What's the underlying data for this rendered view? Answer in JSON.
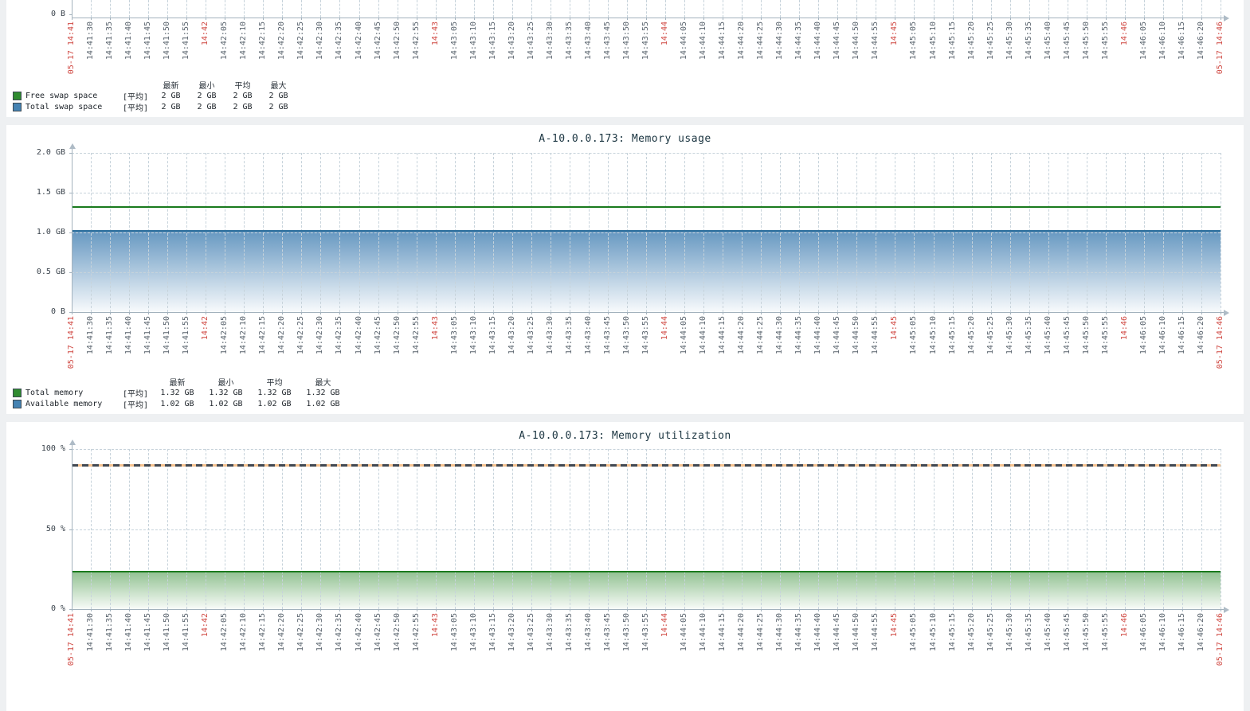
{
  "page": {
    "background": "#eef0f2",
    "panel_background": "#ffffff"
  },
  "palette": {
    "grid": "#c7d3db",
    "axis": "#a3b2bd",
    "tick_text": "#5a646e",
    "tick_text_red": "#d04a44",
    "ylabel_text": "#39424b",
    "title_text": "#1b3541",
    "legend_text": "#20262c",
    "green_line": "#1a7a1d",
    "green_swatch": "#2f8b30",
    "blue_line": "#2d6f9d",
    "blue_swatch": "#4583b3",
    "swatch_border": "#3e4a54",
    "threshold_dark": "#414851",
    "threshold_orange": "#f5c28f"
  },
  "time_axis": {
    "labels": [
      "05-17 14:41",
      "14:41:30",
      "14:41:35",
      "14:41:40",
      "14:41:45",
      "14:41:50",
      "14:41:55",
      "14:42",
      "14:42:05",
      "14:42:10",
      "14:42:15",
      "14:42:20",
      "14:42:25",
      "14:42:30",
      "14:42:35",
      "14:42:40",
      "14:42:45",
      "14:42:50",
      "14:42:55",
      "14:43",
      "14:43:05",
      "14:43:10",
      "14:43:15",
      "14:43:20",
      "14:43:25",
      "14:43:30",
      "14:43:35",
      "14:43:40",
      "14:43:45",
      "14:43:50",
      "14:43:55",
      "14:44",
      "14:44:05",
      "14:44:10",
      "14:44:15",
      "14:44:20",
      "14:44:25",
      "14:44:30",
      "14:44:35",
      "14:44:40",
      "14:44:45",
      "14:44:50",
      "14:44:55",
      "14:45",
      "14:45:05",
      "14:45:10",
      "14:45:15",
      "14:45:20",
      "14:45:25",
      "14:45:30",
      "14:45:35",
      "14:45:40",
      "14:45:45",
      "14:45:50",
      "14:45:55",
      "14:46",
      "14:46:05",
      "14:46:10",
      "14:46:15",
      "14:46:20",
      "05-17 14:46"
    ],
    "red_indices": [
      0,
      7,
      19,
      31,
      43,
      55,
      60
    ]
  },
  "legend_stat_headers": [
    "最新",
    "最小",
    "平均",
    "最大"
  ],
  "panels": [
    {
      "id": "swap-space",
      "title": "",
      "y_labels": [
        "0 B"
      ],
      "legend_rows": [
        {
          "swatch": "#2f8b30",
          "label": "Free swap space",
          "function": "[平均]",
          "values": [
            "2 GB",
            "2 GB",
            "2 GB",
            "2 GB"
          ]
        },
        {
          "swatch": "#4583b3",
          "label": "Total swap space",
          "function": "[平均]",
          "values": [
            "2 GB",
            "2 GB",
            "2 GB",
            "2 GB"
          ]
        }
      ]
    },
    {
      "id": "memory-usage",
      "title": "A-10.0.0.173: Memory usage",
      "y_labels": [
        "2.0 GB",
        "1.5 GB",
        "1.0 GB",
        "0.5 GB",
        "0 B"
      ],
      "legend_rows": [
        {
          "swatch": "#2f8b30",
          "label": "Total memory",
          "function": "[平均]",
          "values": [
            "1.32 GB",
            "1.32 GB",
            "1.32 GB",
            "1.32 GB"
          ]
        },
        {
          "swatch": "#4583b3",
          "label": "Available memory",
          "function": "[平均]",
          "values": [
            "1.02 GB",
            "1.02 GB",
            "1.02 GB",
            "1.02 GB"
          ]
        }
      ]
    },
    {
      "id": "memory-utilization",
      "title": "A-10.0.0.173: Memory utilization",
      "y_labels": [
        "100 %",
        "50 %",
        "0 %"
      ]
    }
  ],
  "chart_data": [
    {
      "type": "line",
      "title": "",
      "x_start": "05-17 14:41",
      "x_end": "05-17 14:46",
      "x_tick_interval_seconds": 5,
      "visible_y_ticks": [
        "0 B"
      ],
      "grid": true,
      "series": [
        {
          "name": "Free swap space",
          "color": "#2f8b30",
          "style": "line",
          "constant_value": "2 GB"
        },
        {
          "name": "Total swap space",
          "color": "#4583b3",
          "style": "line",
          "constant_value": "2 GB"
        }
      ]
    },
    {
      "type": "area",
      "title": "A-10.0.0.173: Memory usage",
      "x_start": "05-17 14:41",
      "x_end": "05-17 14:46",
      "x_tick_interval_seconds": 5,
      "y_ticks": [
        "2.0 GB",
        "1.5 GB",
        "1.0 GB",
        "0.5 GB",
        "0 B"
      ],
      "ylim_gb": [
        0,
        2.0
      ],
      "grid": true,
      "series": [
        {
          "name": "Total memory",
          "style": "line",
          "line_color": "#1a7a1d",
          "constant_value_gb": 1.32
        },
        {
          "name": "Available memory",
          "style": "gradient_area",
          "line_color": "#2d6f9d",
          "fill_color": "#4682b4",
          "constant_value_gb": 1.02
        }
      ]
    },
    {
      "type": "area",
      "title": "A-10.0.0.173: Memory utilization",
      "x_start": "05-17 14:41",
      "x_end": "05-17 14:46",
      "x_tick_interval_seconds": 5,
      "y_ticks": [
        "100 %",
        "50 %",
        "0 %"
      ],
      "ylim_pct": [
        0,
        100
      ],
      "grid": true,
      "series": [
        {
          "name": "Memory utilization",
          "style": "gradient_area",
          "line_color": "#1a7a1d",
          "fill_color": "#2a872a",
          "constant_value_pct": 23.4
        }
      ],
      "threshold": {
        "constant_value_pct": 90,
        "style": "dashed",
        "colors": [
          "#414851",
          "#f5c28f"
        ]
      }
    }
  ]
}
